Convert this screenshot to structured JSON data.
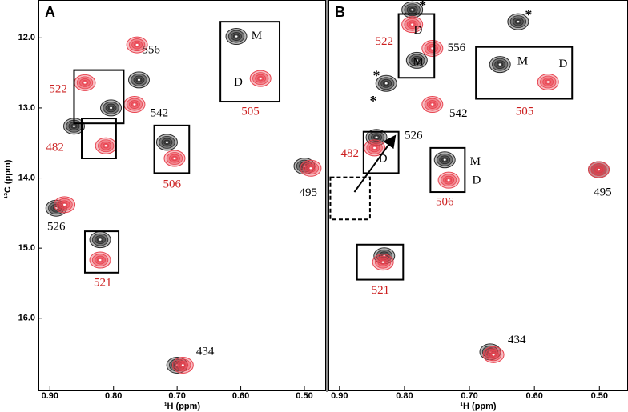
{
  "chart_data": [
    {
      "type": "scatter",
      "title": "A",
      "xlabel": "¹H (ppm)",
      "ylabel": "¹³C (ppm)",
      "xlim": [
        0.918,
        0.466
      ],
      "ylim": [
        11.46,
        17.03
      ],
      "xticks": [
        {
          "value": 0.9,
          "label": "0.90"
        },
        {
          "value": 0.8,
          "label": "0.80"
        },
        {
          "value": 0.7,
          "label": "0.70"
        },
        {
          "value": 0.6,
          "label": "0.60"
        },
        {
          "value": 0.5,
          "label": "0.50"
        }
      ],
      "yticks": [
        {
          "value": 12,
          "label": "12.0"
        },
        {
          "value": 13,
          "label": "13.0"
        },
        {
          "value": 14,
          "label": "14.0"
        },
        {
          "value": 15,
          "label": "15.0"
        },
        {
          "value": 16,
          "label": "16.0"
        }
      ],
      "series": [
        {
          "color": "#2b2b2b",
          "x": [
            0.607,
            0.76,
            0.804,
            0.862,
            0.716,
            0.5,
            0.89,
            0.821,
            0.7
          ],
          "values": [
            11.98,
            12.6,
            13.0,
            13.26,
            13.49,
            13.83,
            14.43,
            14.88,
            16.67
          ]
        },
        {
          "color": "#e8434f",
          "x": [
            0.763,
            0.767,
            0.845,
            0.812,
            0.704,
            0.569,
            0.49,
            0.877,
            0.821,
            0.691
          ],
          "values": [
            12.1,
            12.95,
            12.64,
            13.54,
            13.72,
            12.58,
            13.86,
            14.38,
            15.17,
            16.67
          ]
        }
      ],
      "annotations": [
        {
          "text": "556",
          "x": 0.741,
          "y": 12.18,
          "color": "#000000"
        },
        {
          "text": "M",
          "x": 0.575,
          "y": 11.98,
          "color": "#000000"
        },
        {
          "text": "D",
          "x": 0.604,
          "y": 12.64,
          "color": "#000000"
        },
        {
          "text": "522",
          "x": 0.887,
          "y": 12.74,
          "color": "#cc1f1f"
        },
        {
          "text": "542",
          "x": 0.728,
          "y": 13.08,
          "color": "#000000"
        },
        {
          "text": "482",
          "x": 0.892,
          "y": 13.57,
          "color": "#cc1f1f"
        },
        {
          "text": "505",
          "x": 0.585,
          "y": 13.06,
          "color": "#cc1f1f"
        },
        {
          "text": "506",
          "x": 0.708,
          "y": 14.1,
          "color": "#cc1f1f"
        },
        {
          "text": "495",
          "x": 0.494,
          "y": 14.22,
          "color": "#000000"
        },
        {
          "text": "526",
          "x": 0.89,
          "y": 14.7,
          "color": "#000000"
        },
        {
          "text": "521",
          "x": 0.817,
          "y": 15.5,
          "color": "#cc1f1f"
        },
        {
          "text": "434",
          "x": 0.656,
          "y": 16.48,
          "color": "#000000"
        }
      ],
      "boxes": [
        {
          "x": [
            0.862,
            0.784
          ],
          "y": [
            12.46,
            13.22
          ]
        },
        {
          "x": [
            0.85,
            0.796
          ],
          "y": [
            13.15,
            13.72
          ]
        },
        {
          "x": [
            0.736,
            0.681
          ],
          "y": [
            13.25,
            13.93
          ]
        },
        {
          "x": [
            0.632,
            0.539
          ],
          "y": [
            11.77,
            12.91
          ]
        },
        {
          "x": [
            0.845,
            0.792
          ],
          "y": [
            14.76,
            15.35
          ]
        }
      ]
    },
    {
      "type": "scatter",
      "title": "B",
      "xlabel": "¹H (ppm)",
      "xlim": [
        0.917,
        0.456
      ],
      "ylim": [
        11.46,
        17.03
      ],
      "xticks": [
        {
          "value": 0.9,
          "label": "0.90"
        },
        {
          "value": 0.8,
          "label": "0.80"
        },
        {
          "value": 0.7,
          "label": "0.70"
        },
        {
          "value": 0.6,
          "label": "0.60"
        },
        {
          "value": 0.5,
          "label": "0.50"
        }
      ],
      "series": [
        {
          "color": "#2b2b2b",
          "x": [
            0.781,
            0.788,
            0.828,
            0.625,
            0.653,
            0.843,
            0.738,
            0.501,
            0.831,
            0.668
          ],
          "values": [
            12.32,
            11.6,
            12.65,
            11.77,
            12.38,
            13.42,
            13.74,
            13.88,
            15.11,
            16.48
          ]
        },
        {
          "color": "#e8434f",
          "x": [
            0.788,
            0.757,
            0.757,
            0.579,
            0.846,
            0.732,
            0.501,
            0.833,
            0.663
          ],
          "values": [
            11.81,
            12.15,
            12.95,
            12.63,
            13.57,
            14.03,
            13.88,
            15.2,
            16.52
          ]
        }
      ],
      "annotations": [
        {
          "text": "D",
          "x": 0.779,
          "y": 11.9,
          "color": "#000000"
        },
        {
          "text": "M",
          "x": 0.779,
          "y": 12.35,
          "color": "#000000"
        },
        {
          "text": "522",
          "x": 0.831,
          "y": 12.06,
          "color": "#cc1f1f"
        },
        {
          "text": "556",
          "x": 0.72,
          "y": 12.15,
          "color": "#000000"
        },
        {
          "text": "*",
          "x": 0.772,
          "y": 11.56,
          "color": "#000000"
        },
        {
          "text": "*",
          "x": 0.843,
          "y": 12.56,
          "color": "#000000"
        },
        {
          "text": "*",
          "x": 0.848,
          "y": 12.92,
          "color": "#000000"
        },
        {
          "text": "*",
          "x": 0.609,
          "y": 11.69,
          "color": "#000000"
        },
        {
          "text": "M",
          "x": 0.618,
          "y": 12.34,
          "color": "#000000"
        },
        {
          "text": "D",
          "x": 0.556,
          "y": 12.38,
          "color": "#000000"
        },
        {
          "text": "505",
          "x": 0.615,
          "y": 13.06,
          "color": "#cc1f1f"
        },
        {
          "text": "542",
          "x": 0.717,
          "y": 13.09,
          "color": "#000000"
        },
        {
          "text": "526",
          "x": 0.786,
          "y": 13.4,
          "color": "#000000"
        },
        {
          "text": "482",
          "x": 0.884,
          "y": 13.66,
          "color": "#cc1f1f"
        },
        {
          "text": "D",
          "x": 0.833,
          "y": 13.73,
          "color": "#000000"
        },
        {
          "text": "M",
          "x": 0.691,
          "y": 13.77,
          "color": "#000000"
        },
        {
          "text": "D",
          "x": 0.689,
          "y": 14.04,
          "color": "#000000"
        },
        {
          "text": "506",
          "x": 0.738,
          "y": 14.35,
          "color": "#cc1f1f"
        },
        {
          "text": "495",
          "x": 0.495,
          "y": 14.21,
          "color": "#000000"
        },
        {
          "text": "521",
          "x": 0.837,
          "y": 15.61,
          "color": "#cc1f1f"
        },
        {
          "text": "434",
          "x": 0.627,
          "y": 16.32,
          "color": "#000000"
        }
      ],
      "boxes": [
        {
          "x": [
            0.809,
            0.754
          ],
          "y": [
            11.66,
            12.57
          ]
        },
        {
          "x": [
            0.69,
            0.542
          ],
          "y": [
            12.13,
            12.87
          ]
        },
        {
          "x": [
            0.863,
            0.809
          ],
          "y": [
            13.34,
            13.93
          ]
        },
        {
          "x": [
            0.76,
            0.707
          ],
          "y": [
            13.57,
            14.2
          ]
        },
        {
          "x": [
            0.873,
            0.802
          ],
          "y": [
            14.95,
            15.45
          ]
        },
        {
          "x": [
            0.914,
            0.853
          ],
          "y": [
            13.99,
            14.59
          ],
          "dashed": true
        }
      ],
      "arrows": [
        {
          "x": [
            0.877,
            0.816
          ],
          "y": [
            14.2,
            13.42
          ]
        }
      ]
    }
  ]
}
